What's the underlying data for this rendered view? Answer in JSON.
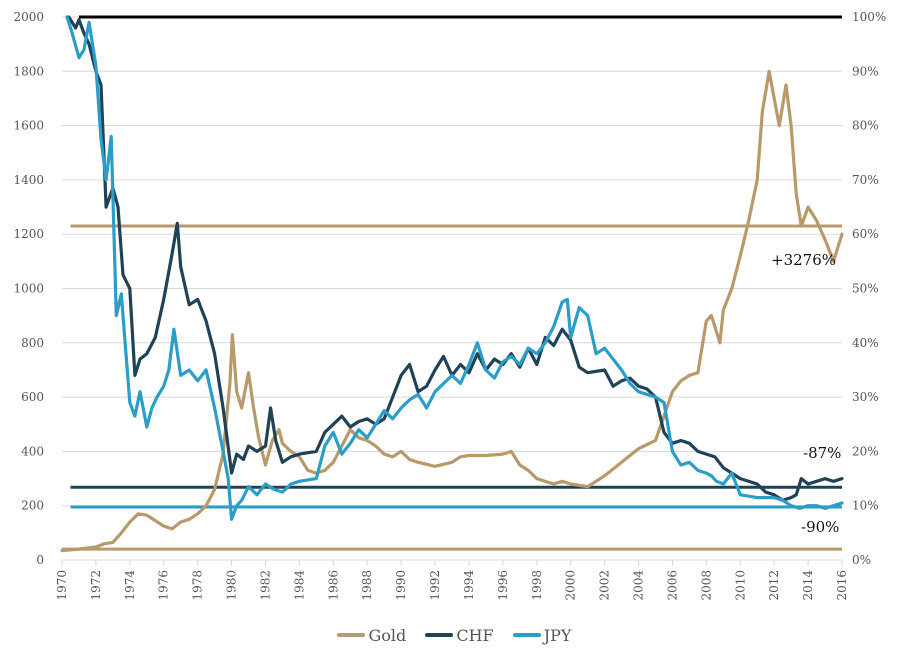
{
  "chart_data": {
    "type": "line",
    "title": "",
    "xlabel": "",
    "ylabel": "",
    "xlim": [
      1970,
      2016
    ],
    "ylim": [
      0,
      2000
    ],
    "y2lim": [
      0,
      100
    ],
    "grid": true,
    "legend_position": "bottom",
    "x_ticks": [
      "1970",
      "1972",
      "1974",
      "1976",
      "1978",
      "1980",
      "1982",
      "1984",
      "1986",
      "1988",
      "1990",
      "1992",
      "1994",
      "1996",
      "1998",
      "2000",
      "2002",
      "2004",
      "2006",
      "2008",
      "2010",
      "2012",
      "2014",
      "2016"
    ],
    "y_ticks": [
      "0",
      "200",
      "400",
      "600",
      "800",
      "1000",
      "1200",
      "1400",
      "1600",
      "1800",
      "2000"
    ],
    "y_tick_values": [
      0,
      200,
      400,
      600,
      800,
      1000,
      1200,
      1400,
      1600,
      1800,
      2000
    ],
    "y2_ticks": [
      "0%",
      "10%",
      "20%",
      "30%",
      "40%",
      "50%",
      "60%",
      "70%",
      "80%",
      "90%",
      "100%"
    ],
    "colors": {
      "gold": "#b8996a",
      "chf": "#1f4257",
      "jpy": "#2a9dc9",
      "ref_top": "#000000",
      "grid": "#d9d9d9"
    },
    "series": [
      {
        "name": "Gold",
        "key": "gold",
        "x": [
          1970,
          1971,
          1972,
          1972.5,
          1973,
          1973.5,
          1974,
          1974.5,
          1975,
          1975.5,
          1976,
          1976.5,
          1977,
          1977.5,
          1978,
          1978.5,
          1979,
          1979.5,
          1979.9,
          1980.05,
          1980.3,
          1980.6,
          1981,
          1981.3,
          1981.6,
          1982,
          1982.4,
          1982.8,
          1983,
          1983.5,
          1984,
          1984.5,
          1985,
          1985.5,
          1986,
          1986.5,
          1987,
          1987.5,
          1988,
          1988.5,
          1989,
          1989.5,
          1990,
          1990.5,
          1991,
          1992,
          1993,
          1993.5,
          1994,
          1995,
          1996,
          1996.5,
          1997,
          1997.5,
          1998,
          1999,
          1999.5,
          2000,
          2001,
          2002,
          2003,
          2004,
          2005,
          2006,
          2006.5,
          2007,
          2007.5,
          2008,
          2008.3,
          2008.8,
          2009,
          2009.5,
          2010,
          2010.5,
          2011,
          2011.3,
          2011.7,
          2012,
          2012.3,
          2012.7,
          2013,
          2013.3,
          2013.6,
          2014,
          2014.5,
          2015,
          2015.5,
          2016
        ],
        "y": [
          35,
          40,
          48,
          60,
          65,
          100,
          140,
          170,
          165,
          145,
          125,
          115,
          140,
          150,
          170,
          200,
          260,
          390,
          650,
          830,
          620,
          560,
          690,
          560,
          450,
          350,
          440,
          480,
          430,
          400,
          380,
          330,
          320,
          330,
          360,
          420,
          480,
          450,
          440,
          420,
          390,
          380,
          400,
          370,
          360,
          345,
          360,
          380,
          385,
          385,
          390,
          400,
          350,
          330,
          300,
          280,
          290,
          280,
          270,
          310,
          360,
          410,
          440,
          620,
          660,
          680,
          690,
          880,
          900,
          800,
          920,
          1000,
          1120,
          1250,
          1400,
          1650,
          1800,
          1700,
          1600,
          1750,
          1600,
          1350,
          1230,
          1300,
          1250,
          1180,
          1100,
          1200
        ]
      },
      {
        "name": "CHF",
        "key": "chf",
        "x": [
          1970.4,
          1970.8,
          1971,
          1971.3,
          1971.6,
          1972,
          1972.3,
          1972.6,
          1973,
          1973.3,
          1973.6,
          1974,
          1974.3,
          1974.6,
          1975,
          1975.5,
          1976,
          1976.5,
          1976.8,
          1977,
          1977.5,
          1978,
          1978.5,
          1979,
          1979.5,
          1980,
          1980.3,
          1980.7,
          1981,
          1981.5,
          1982,
          1982.3,
          1982.6,
          1983,
          1983.5,
          1984,
          1985,
          1985.5,
          1986,
          1986.5,
          1987,
          1987.5,
          1988,
          1988.5,
          1989,
          1989.5,
          1990,
          1990.5,
          1991,
          1991.5,
          1992,
          1992.5,
          1993,
          1993.5,
          1994,
          1994.5,
          1995,
          1995.5,
          1996,
          1996.5,
          1997,
          1997.5,
          1998,
          1998.5,
          1999,
          1999.5,
          2000,
          2000.5,
          2001,
          2002,
          2002.5,
          2003,
          2003.5,
          2004,
          2004.5,
          2005,
          2005.5,
          2006,
          2006.5,
          2007,
          2007.5,
          2008,
          2008.5,
          2009,
          2009.5,
          2010,
          2011,
          2011.5,
          2012,
          2012.5,
          2013,
          2013.3,
          2013.6,
          2014,
          2014.5,
          2015,
          2015.5,
          2016
        ],
        "y": [
          2000,
          1960,
          1990,
          1940,
          1900,
          1800,
          1750,
          1300,
          1370,
          1300,
          1050,
          1000,
          680,
          740,
          760,
          820,
          960,
          1130,
          1240,
          1080,
          940,
          960,
          880,
          760,
          560,
          320,
          390,
          370,
          420,
          400,
          420,
          560,
          440,
          360,
          380,
          390,
          400,
          470,
          500,
          530,
          490,
          510,
          520,
          500,
          520,
          600,
          680,
          720,
          620,
          640,
          700,
          750,
          680,
          720,
          690,
          760,
          700,
          740,
          720,
          760,
          710,
          780,
          720,
          820,
          790,
          850,
          810,
          710,
          690,
          700,
          640,
          660,
          670,
          640,
          630,
          600,
          470,
          430,
          440,
          430,
          400,
          390,
          380,
          340,
          320,
          300,
          280,
          250,
          240,
          220,
          230,
          240,
          300,
          280,
          290,
          300,
          290,
          300
        ]
      },
      {
        "name": "JPY",
        "key": "jpy",
        "x": [
          1970.3,
          1970.6,
          1971,
          1971.3,
          1971.6,
          1972,
          1972.3,
          1972.6,
          1972.9,
          1973.2,
          1973.5,
          1974,
          1974.3,
          1974.6,
          1975,
          1975.3,
          1975.6,
          1976,
          1976.3,
          1976.6,
          1977,
          1977.5,
          1978,
          1978.5,
          1979,
          1979.5,
          1979.8,
          1980,
          1980.3,
          1980.6,
          1981,
          1981.5,
          1982,
          1982.5,
          1983,
          1983.5,
          1984,
          1985,
          1985.5,
          1986,
          1986.5,
          1987,
          1987.5,
          1988,
          1988.5,
          1989,
          1989.5,
          1990,
          1990.5,
          1991,
          1991.5,
          1992,
          1993,
          1993.5,
          1994,
          1994.5,
          1995,
          1995.5,
          1996,
          1996.5,
          1997,
          1997.5,
          1998,
          1998.5,
          1999,
          1999.5,
          1999.8,
          2000,
          2000.5,
          2001,
          2001.5,
          2002,
          2003,
          2003.5,
          2004,
          2005,
          2005.5,
          2006,
          2006.5,
          2007,
          2007.5,
          2008,
          2008.3,
          2008.6,
          2009,
          2009.5,
          2010,
          2011,
          2012,
          2012.5,
          2013,
          2013.5,
          2014,
          2014.5,
          2015,
          2015.5,
          2016
        ],
        "y": [
          2000,
          1940,
          1850,
          1880,
          1980,
          1820,
          1550,
          1400,
          1560,
          900,
          980,
          580,
          530,
          620,
          490,
          560,
          600,
          640,
          700,
          850,
          680,
          700,
          660,
          700,
          560,
          400,
          300,
          150,
          200,
          220,
          270,
          240,
          280,
          260,
          250,
          280,
          290,
          300,
          420,
          470,
          390,
          430,
          480,
          450,
          500,
          550,
          520,
          560,
          590,
          610,
          560,
          620,
          680,
          650,
          720,
          800,
          700,
          670,
          730,
          750,
          720,
          780,
          760,
          800,
          860,
          950,
          960,
          820,
          930,
          900,
          760,
          780,
          700,
          650,
          620,
          600,
          580,
          400,
          350,
          360,
          330,
          320,
          310,
          290,
          280,
          320,
          240,
          230,
          230,
          220,
          200,
          190,
          200,
          200,
          190,
          200,
          210
        ]
      }
    ],
    "reference_lines": [
      {
        "series": "ref_top",
        "y": 2000,
        "from": 1971
      },
      {
        "series": "gold",
        "y": 1230,
        "from": 1970.5
      },
      {
        "series": "chf",
        "y": 268,
        "from": 1970.5
      },
      {
        "series": "jpy",
        "y": 195,
        "from": 1970.5
      },
      {
        "series": "gold",
        "y": 40,
        "from": 1970
      }
    ],
    "annotations": [
      {
        "text": "+3276%",
        "series": "gold"
      },
      {
        "text": "-87%",
        "series": "chf"
      },
      {
        "text": "-90%",
        "series": "jpy"
      }
    ],
    "legend": [
      "Gold",
      "CHF",
      "JPY"
    ]
  }
}
